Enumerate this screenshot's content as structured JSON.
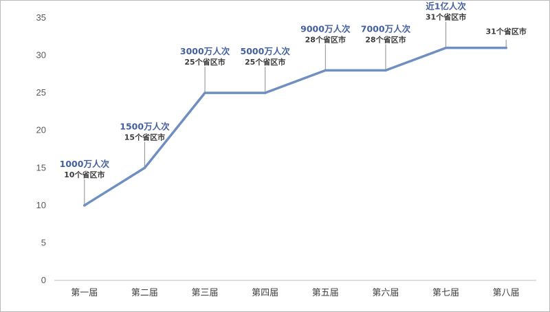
{
  "chart_data": {
    "type": "line",
    "title": "",
    "xlabel": "",
    "ylabel": "",
    "ylim": [
      0,
      35
    ],
    "yticks": [
      0,
      5,
      10,
      15,
      20,
      25,
      30,
      35
    ],
    "grid": false,
    "legend": "none",
    "categories": [
      "第一届",
      "第二届",
      "第三届",
      "第四届",
      "第五届",
      "第六届",
      "第七届",
      "第八届"
    ],
    "series": [
      {
        "values": [
          10,
          15,
          25,
          25,
          28,
          28,
          31,
          31
        ]
      }
    ],
    "annotations": [
      {
        "line1": "1000万人次",
        "line2": "10个省区市"
      },
      {
        "line1": "1500万人次",
        "line2": "15个省区市"
      },
      {
        "line1": "3000万人次",
        "line2": "25个省区市"
      },
      {
        "line1": "5000万人次",
        "line2": "25个省区市"
      },
      {
        "line1": "9000万人次",
        "line2": "28个省区市"
      },
      {
        "line1": "7000万人次",
        "line2": "28个省区市"
      },
      {
        "line1": "近1亿人次",
        "line2": "31个省区市"
      },
      {
        "line1": "",
        "line2": "31个省区市"
      }
    ],
    "colors": {
      "line": "#6f8fc0",
      "leader": "#8c8c8c",
      "axis": "#bfbfbf",
      "label_primary": "#44609c",
      "label_secondary": "#3a3a3a"
    }
  }
}
